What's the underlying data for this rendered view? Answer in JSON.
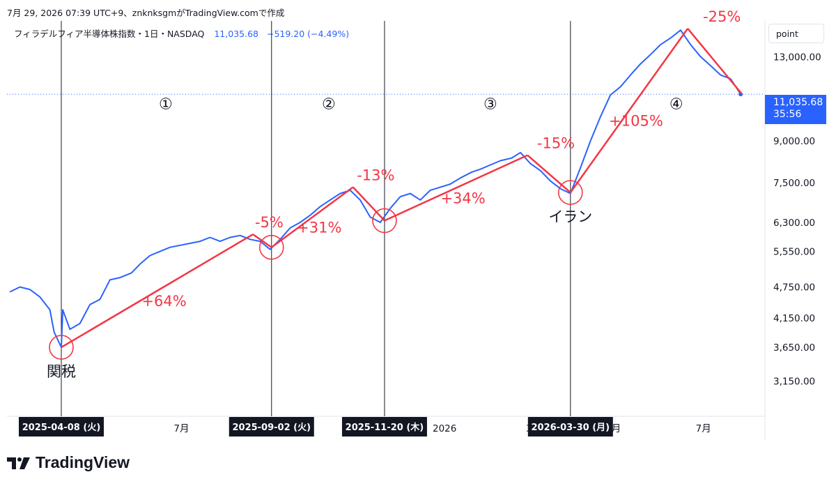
{
  "header": {
    "caption": "7月 29, 2026 07:39 UTC+9、znknksgmがTradingView.comで作成"
  },
  "legend": {
    "symbol": "フィラデルフィア半導体株指数・1日・NASDAQ",
    "value": "11,035.68",
    "change": "−519.20 (−4.49%)"
  },
  "price_axis": {
    "unit": "point",
    "current_value": "11,035.68",
    "countdown": "35:56"
  },
  "brand": {
    "icon": "tradingview-logo-icon",
    "name": "TradingView"
  },
  "colors": {
    "line": "#2962ff",
    "annotation": "#f23645",
    "axis_text": "#131722",
    "vline": "#131722"
  },
  "chart_data": {
    "type": "line",
    "scale": "log",
    "ylim": [
      2700,
      15200
    ],
    "xlim": [
      "2025-03-01",
      "2026-08-13"
    ],
    "y_ticks": [
      {
        "value": 13000,
        "label": "13,000.00"
      },
      {
        "value": 9000,
        "label": "9,000.00"
      },
      {
        "value": 7500,
        "label": "7,500.00"
      },
      {
        "value": 6300,
        "label": "6,300.00"
      },
      {
        "value": 5550,
        "label": "5,550.00"
      },
      {
        "value": 4750,
        "label": "4,750.00"
      },
      {
        "value": 4150,
        "label": "4,150.00"
      },
      {
        "value": 3650,
        "label": "3,650.00"
      },
      {
        "value": 3150,
        "label": "3,150.00"
      }
    ],
    "x_ticks": [
      {
        "date": "2025-07-01",
        "label": "7月"
      },
      {
        "date": "2026-01-01",
        "label": "2026"
      },
      {
        "date": "2026-03-01",
        "label": "3"
      },
      {
        "date": "2026-05-01",
        "label": "月"
      },
      {
        "date": "2026-07-01",
        "label": "7月"
      }
    ],
    "date_markers": [
      {
        "date": "2025-04-08",
        "label": "2025-04-08 (火)"
      },
      {
        "date": "2025-09-02",
        "label": "2025-09-02 (火)"
      },
      {
        "date": "2025-11-20",
        "label": "2025-11-20 (木)"
      },
      {
        "date": "2026-03-30",
        "label": "2026-03-30 (月)"
      }
    ],
    "period_labels": [
      {
        "date": "2025-06-20",
        "value": 10600,
        "label": "①"
      },
      {
        "date": "2025-10-12",
        "value": 10600,
        "label": "②"
      },
      {
        "date": "2026-02-02",
        "value": 10600,
        "label": "③"
      },
      {
        "date": "2026-06-12",
        "value": 10600,
        "label": "④"
      }
    ],
    "series": [
      {
        "x": [
          "2025-03-03",
          "2025-03-10",
          "2025-03-17",
          "2025-03-24",
          "2025-03-31",
          "2025-04-03",
          "2025-04-08",
          "2025-04-09",
          "2025-04-14",
          "2025-04-21",
          "2025-04-28",
          "2025-05-05",
          "2025-05-12",
          "2025-05-19",
          "2025-05-27",
          "2025-06-02",
          "2025-06-09",
          "2025-06-16",
          "2025-06-23",
          "2025-06-30",
          "2025-07-07",
          "2025-07-14",
          "2025-07-21",
          "2025-07-28",
          "2025-08-04",
          "2025-08-11",
          "2025-08-18",
          "2025-08-25",
          "2025-09-01",
          "2025-09-08",
          "2025-09-15",
          "2025-09-22",
          "2025-09-29",
          "2025-10-06",
          "2025-10-13",
          "2025-10-20",
          "2025-10-27",
          "2025-11-03",
          "2025-11-10",
          "2025-11-17",
          "2025-11-24",
          "2025-12-01",
          "2025-12-08",
          "2025-12-15",
          "2025-12-22",
          "2026-01-05",
          "2026-01-12",
          "2026-01-20",
          "2026-01-26",
          "2026-02-02",
          "2026-02-09",
          "2026-02-17",
          "2026-02-23",
          "2026-03-02",
          "2026-03-09",
          "2026-03-16",
          "2026-03-23",
          "2026-03-30",
          "2026-04-06",
          "2026-04-13",
          "2026-04-20",
          "2026-04-27",
          "2026-05-04",
          "2026-05-11",
          "2026-05-18",
          "2026-05-26",
          "2026-06-01",
          "2026-06-08",
          "2026-06-15",
          "2026-06-22",
          "2026-06-29",
          "2026-07-06",
          "2026-07-13",
          "2026-07-20",
          "2026-07-27"
        ],
        "values": [
          4650,
          4750,
          4700,
          4550,
          4300,
          3900,
          3650,
          4300,
          3950,
          4050,
          4400,
          4500,
          4900,
          4950,
          5050,
          5250,
          5450,
          5550,
          5650,
          5700,
          5750,
          5800,
          5900,
          5800,
          5900,
          5950,
          5850,
          5800,
          5600,
          5850,
          6150,
          6300,
          6500,
          6750,
          6950,
          7150,
          7250,
          6950,
          6450,
          6300,
          6700,
          7050,
          7150,
          6950,
          7250,
          7450,
          7650,
          7850,
          7950,
          8100,
          8250,
          8350,
          8550,
          8150,
          7900,
          7550,
          7300,
          7150,
          8000,
          9000,
          10000,
          11000,
          11400,
          12000,
          12600,
          13200,
          13700,
          14100,
          14600,
          13700,
          13000,
          12500,
          12000,
          11800,
          11035
        ]
      }
    ],
    "annotation_segments": [
      {
        "from": {
          "date": "2025-04-08",
          "value": 3650
        },
        "to": {
          "date": "2025-08-20",
          "value": 5980
        },
        "label": "+64%"
      },
      {
        "from": {
          "date": "2025-08-20",
          "value": 5980
        },
        "to": {
          "date": "2025-09-02",
          "value": 5650
        },
        "label": "-5%"
      },
      {
        "from": {
          "date": "2025-09-02",
          "value": 5650
        },
        "to": {
          "date": "2025-10-29",
          "value": 7350
        },
        "label": "+31%"
      },
      {
        "from": {
          "date": "2025-10-29",
          "value": 7350
        },
        "to": {
          "date": "2025-11-20",
          "value": 6350
        },
        "label": "-13%"
      },
      {
        "from": {
          "date": "2025-11-20",
          "value": 6350
        },
        "to": {
          "date": "2026-02-28",
          "value": 8450
        },
        "label": "+34%"
      },
      {
        "from": {
          "date": "2026-02-28",
          "value": 8450
        },
        "to": {
          "date": "2026-03-30",
          "value": 7180
        },
        "label": "-15%"
      },
      {
        "from": {
          "date": "2026-03-30",
          "value": 7180
        },
        "to": {
          "date": "2026-06-20",
          "value": 14700
        },
        "label": "+105%"
      },
      {
        "from": {
          "date": "2026-06-20",
          "value": 14700
        },
        "to": {
          "date": "2026-07-28",
          "value": 11035
        },
        "label": "-25%"
      }
    ],
    "circle_markers": [
      {
        "date": "2025-04-08",
        "value": 3650,
        "label": "関税"
      },
      {
        "date": "2025-09-02",
        "value": 5650,
        "label": ""
      },
      {
        "date": "2025-11-20",
        "value": 6350,
        "label": ""
      },
      {
        "date": "2026-03-30",
        "value": 7180,
        "label": "イラン"
      }
    ],
    "current_price_line": 11035
  }
}
